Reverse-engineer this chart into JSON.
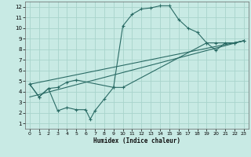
{
  "xlabel": "Humidex (Indice chaleur)",
  "bg_color": "#c8eae4",
  "grid_color": "#a8d4cc",
  "line_color": "#2a6b65",
  "xlim": [
    -0.5,
    23.5
  ],
  "ylim": [
    0.5,
    12.5
  ],
  "xticks": [
    0,
    1,
    2,
    3,
    4,
    5,
    6,
    7,
    8,
    9,
    10,
    11,
    12,
    13,
    14,
    15,
    16,
    17,
    18,
    19,
    20,
    21,
    22,
    23
  ],
  "yticks": [
    1,
    2,
    3,
    4,
    5,
    6,
    7,
    8,
    9,
    10,
    11,
    12
  ],
  "line1_x": [
    0,
    1,
    2,
    3,
    4,
    5,
    6,
    6.5,
    7,
    8,
    9,
    10,
    11,
    12,
    13,
    14,
    15,
    16,
    17,
    18,
    19,
    20,
    21,
    22,
    23
  ],
  "line1_y": [
    4.7,
    3.5,
    4.3,
    2.2,
    2.5,
    2.3,
    2.3,
    1.4,
    2.2,
    3.3,
    4.4,
    10.2,
    11.3,
    11.8,
    11.9,
    12.1,
    12.1,
    10.8,
    10.0,
    9.6,
    8.6,
    7.9,
    8.6,
    8.6,
    8.8
  ],
  "line2_x": [
    0,
    1,
    2,
    3,
    4,
    5,
    9,
    10,
    19,
    20,
    22,
    23
  ],
  "line2_y": [
    4.7,
    3.5,
    4.3,
    4.4,
    4.9,
    5.1,
    4.4,
    4.4,
    8.6,
    8.6,
    8.6,
    8.8
  ],
  "line3_x": [
    0,
    23
  ],
  "line3_y": [
    4.7,
    8.8
  ],
  "line4_x": [
    0,
    23
  ],
  "line4_y": [
    3.5,
    8.8
  ]
}
